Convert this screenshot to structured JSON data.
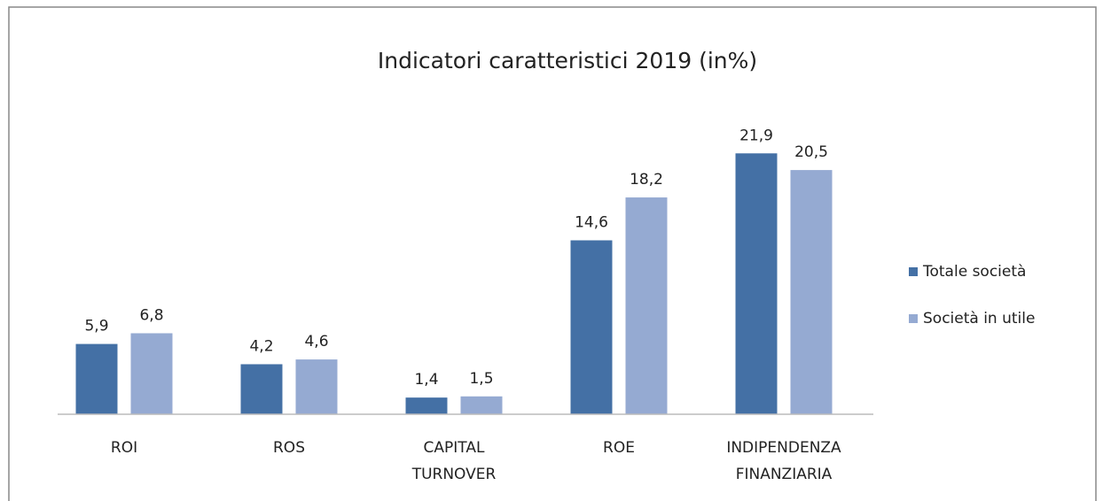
{
  "chart_data": {
    "type": "bar",
    "title": "Indicatori caratteristici 2019 (in%)",
    "categories": [
      "ROI",
      "ROS",
      "CAPITAL TURNOVER",
      "ROE",
      "INDIPENDENZA FINANZIARIA"
    ],
    "series": [
      {
        "name": "Totale società",
        "color": "#4470a5",
        "values": [
          5.9,
          4.2,
          1.4,
          14.6,
          21.9
        ],
        "value_labels": [
          "5,9",
          "4,2",
          "1,4",
          "14,6",
          "21,9"
        ]
      },
      {
        "name": "Società in utile",
        "color": "#95aad2",
        "values": [
          6.8,
          4.6,
          1.5,
          18.2,
          20.5
        ],
        "value_labels": [
          "6,8",
          "4,6",
          "1,5",
          "18,2",
          "20,5"
        ]
      }
    ],
    "ylim": [
      0,
      24
    ],
    "legend": "right"
  }
}
